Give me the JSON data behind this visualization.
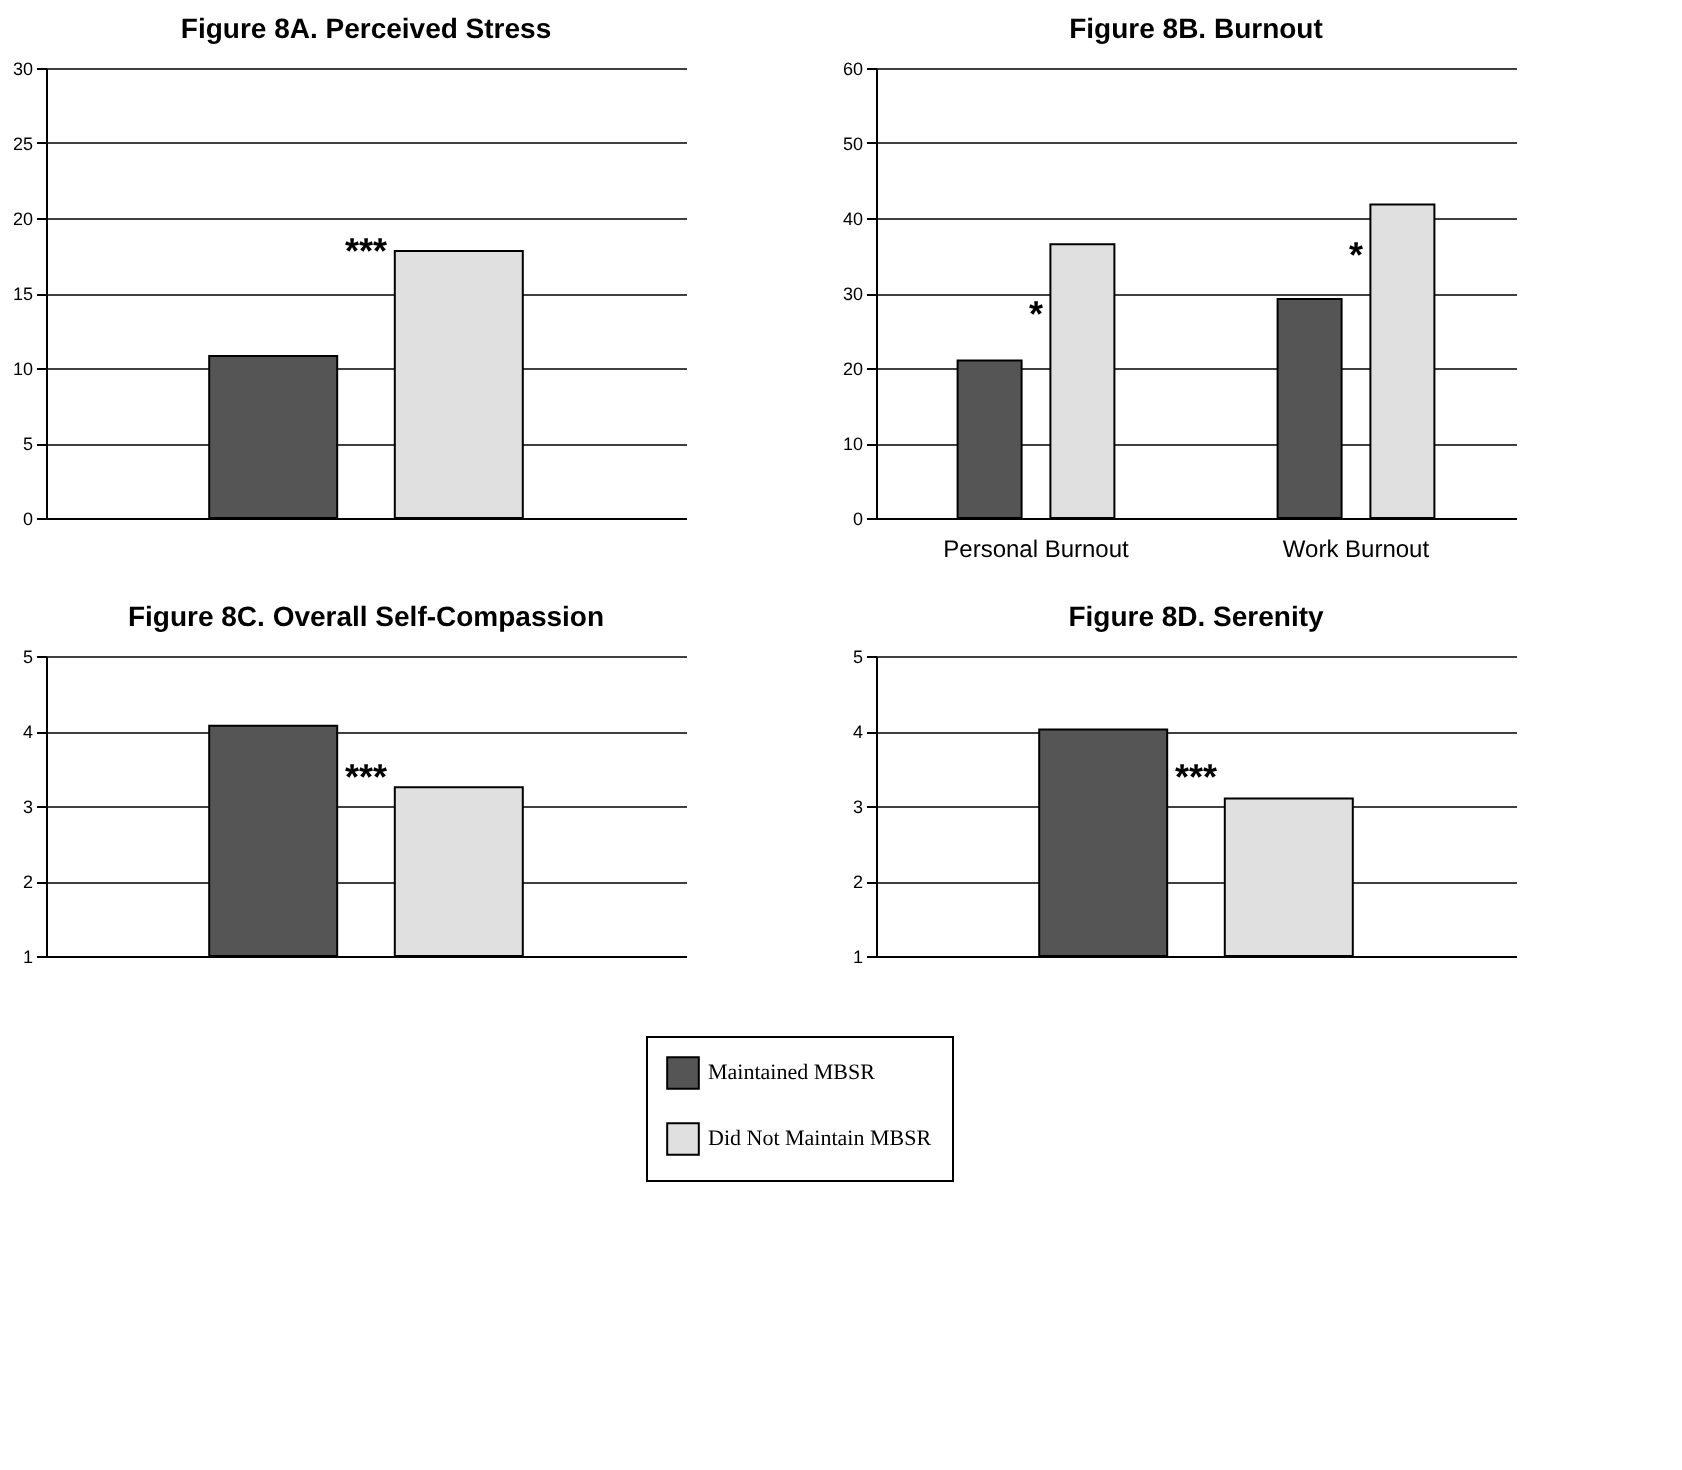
{
  "chart_data": [
    {
      "type": "bar",
      "title": "Figure 8A.  Perceived Stress",
      "categories": [
        null
      ],
      "series": [
        {
          "color": "#555555",
          "values": [
            10.8
          ]
        },
        {
          "color": "#e0e0e0",
          "values": [
            17.8
          ]
        }
      ],
      "ylim": [
        0,
        30
      ],
      "yticks": [
        0,
        5,
        10,
        15,
        20,
        25,
        30
      ],
      "grid": "y",
      "annotations": [
        "***"
      ]
    },
    {
      "type": "bar",
      "title": "Figure 8B. Burnout",
      "categories": [
        "Personal Burnout",
        "Work Burnout"
      ],
      "series": [
        {
          "color": "#555555",
          "values": [
            21,
            29.2
          ]
        },
        {
          "color": "#e0e0e0",
          "values": [
            36.5,
            41.8
          ]
        }
      ],
      "ylim": [
        0,
        60
      ],
      "yticks": [
        0,
        10,
        20,
        30,
        40,
        50,
        60
      ],
      "grid": "y",
      "annotations": [
        "*",
        "*"
      ]
    },
    {
      "type": "bar",
      "title": "Figure 8C. Overall Self-Compassion",
      "categories": [
        null
      ],
      "series": [
        {
          "name": "Maintained MBSR",
          "color": "#555555",
          "values": [
            4.07
          ]
        },
        {
          "name": "Did Not Maintain MBSR",
          "color": "#e0e0e0",
          "values": [
            3.25
          ]
        }
      ],
      "ylim": [
        1,
        5
      ],
      "yticks": [
        1,
        2,
        3,
        4,
        5
      ],
      "grid": "y",
      "legend": "bottom",
      "annotations": [
        "***"
      ]
    },
    {
      "type": "bar",
      "title": "Figure 8D. Serenity",
      "categories": [
        null
      ],
      "series": [
        {
          "color": "#555555",
          "values": [
            4.02
          ]
        },
        {
          "color": "#e0e0e0",
          "values": [
            3.1
          ]
        }
      ],
      "ylim": [
        1,
        5
      ],
      "yticks": [
        1,
        2,
        3,
        4,
        5
      ],
      "grid": "y",
      "annotations": [
        "***"
      ]
    }
  ]
}
